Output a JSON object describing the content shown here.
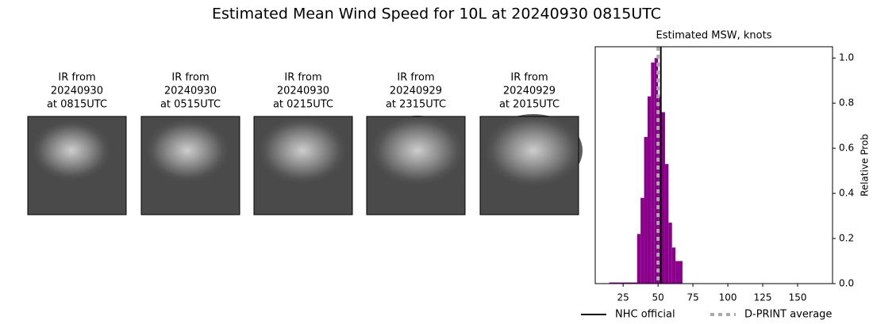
{
  "title": "Estimated Mean Wind Speed for 10L at 20240930 0815UTC",
  "panels": [
    {
      "title": [
        "IR from",
        "20240930",
        "at 0815UTC"
      ]
    },
    {
      "title": [
        "IR from",
        "20240930",
        "at 0515UTC"
      ]
    },
    {
      "title": [
        "IR from",
        "20240930",
        "at 0215UTC"
      ]
    },
    {
      "title": [
        "IR from",
        "20240929",
        "at 2315UTC"
      ]
    },
    {
      "title": [
        "IR from",
        "20240929",
        "at 2015UTC"
      ]
    }
  ],
  "chart_data": {
    "type": "histogram",
    "title": "Estimated MSW, knots",
    "y_label": "Relative Prob",
    "color": "#8b008b",
    "bins": [
      15,
      17.5,
      20,
      22.5,
      25,
      27.5,
      30,
      32.5,
      35,
      37.5,
      40,
      42.5,
      45,
      47.5,
      50,
      52.5,
      55,
      57.5,
      60,
      62.5,
      65,
      67.5
    ],
    "values": [
      0.005,
      0.005,
      0.005,
      0.005,
      0.005,
      0.005,
      0.005,
      0.005,
      0.22,
      0.38,
      0.65,
      0.83,
      0.98,
      1.0,
      0.83,
      0.76,
      0.53,
      0.27,
      0.16,
      0.1,
      0.1
    ],
    "xlim": [
      5,
      175
    ],
    "xticks": [
      25,
      50,
      75,
      100,
      125,
      150
    ],
    "ylim": [
      0,
      1.05
    ],
    "yticks": [
      {
        "value": 0,
        "label": "0.0"
      },
      {
        "value": 0.2,
        "label": "0.2"
      },
      {
        "value": 0.4,
        "label": "0.4"
      },
      {
        "value": 0.6,
        "label": "0.6"
      },
      {
        "value": 0.8,
        "label": "0.8"
      },
      {
        "value": 1.0,
        "label": "1.0"
      }
    ],
    "lines": [
      {
        "name": "NHC official",
        "value": 52,
        "color": "#000000",
        "style": "solid"
      },
      {
        "name": "D-PRINT average",
        "value": 50,
        "color": "#aaaaaa",
        "style": "dotted"
      }
    ]
  }
}
